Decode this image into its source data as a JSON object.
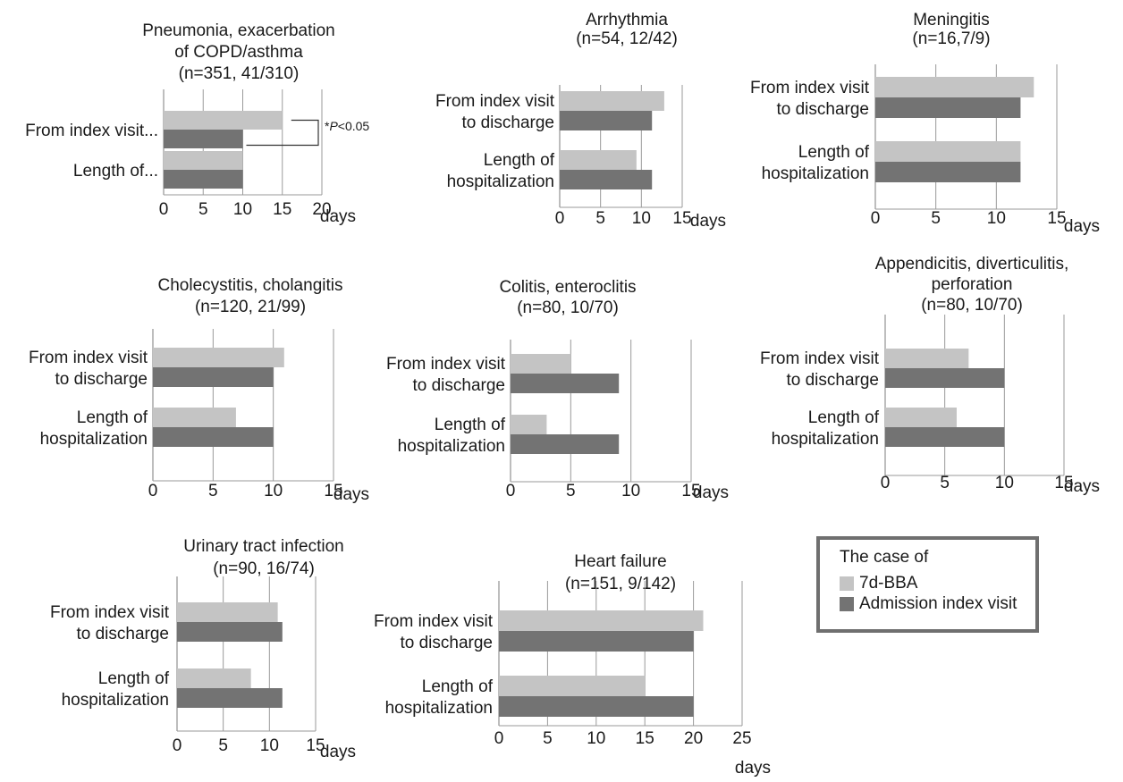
{
  "colors": {
    "light": "#c4c4c4",
    "dark": "#737373",
    "axis": "#9a9a9a",
    "text": "#1a1a1a"
  },
  "legend": {
    "title": "The case of",
    "items": [
      {
        "label": "7d-BBA",
        "color": "#c4c4c4"
      },
      {
        "label": "Admission index visit",
        "color": "#737373"
      }
    ]
  },
  "chart_data": [
    {
      "type": "bar",
      "orientation": "horizontal",
      "title_lines": [
        "Pneumonia, exacerbation",
        "of COPD/asthma",
        "(n=351, 41/310)"
      ],
      "categories": [
        "From index visit...",
        "Length of..."
      ],
      "series": [
        {
          "name": "7d-BBA",
          "values": [
            15,
            10
          ]
        },
        {
          "name": "Admission index visit",
          "values": [
            10,
            10
          ]
        }
      ],
      "xlim": [
        0,
        20
      ],
      "ticks": [
        0,
        5,
        10,
        15,
        20
      ],
      "unit": "days",
      "annotation": "*P<0.05",
      "grid": true
    },
    {
      "type": "bar",
      "orientation": "horizontal",
      "title_lines": [
        "Arrhythmia",
        "(n=54, 12/42)"
      ],
      "categories": [
        "From index visit to discharge",
        "Length of hospitalization"
      ],
      "series": [
        {
          "name": "7d-BBA",
          "values": [
            12.8,
            9.4
          ]
        },
        {
          "name": "Admission index visit",
          "values": [
            11.3,
            11.3
          ]
        }
      ],
      "xlim": [
        0,
        15
      ],
      "ticks": [
        0,
        5,
        10,
        15
      ],
      "unit": "days",
      "grid": true
    },
    {
      "type": "bar",
      "orientation": "horizontal",
      "title_lines": [
        "Meningitis",
        "(n=16,7/9)"
      ],
      "categories": [
        "From index visit to discharge",
        "Length of hospitalization"
      ],
      "series": [
        {
          "name": "7d-BBA",
          "values": [
            13.1,
            12.0
          ]
        },
        {
          "name": "Admission index visit",
          "values": [
            12.0,
            12.0
          ]
        }
      ],
      "xlim": [
        0,
        15
      ],
      "ticks": [
        0,
        5,
        10,
        15
      ],
      "unit": "days",
      "grid": true
    },
    {
      "type": "bar",
      "orientation": "horizontal",
      "title_lines": [
        "Cholecystitis, cholangitis",
        "(n=120, 21/99)"
      ],
      "categories": [
        "From index visit to discharge",
        "Length of hospitalization"
      ],
      "series": [
        {
          "name": "7d-BBA",
          "values": [
            10.9,
            6.9
          ]
        },
        {
          "name": "Admission index visit",
          "values": [
            10.0,
            10.0
          ]
        }
      ],
      "xlim": [
        0,
        15
      ],
      "ticks": [
        0,
        5,
        10,
        15
      ],
      "unit": "days",
      "grid": true
    },
    {
      "type": "bar",
      "orientation": "horizontal",
      "title_lines": [
        "Colitis, enteroclitis",
        "(n=80, 10/70)"
      ],
      "categories": [
        "From index visit to discharge",
        "Length of hospitalization"
      ],
      "series": [
        {
          "name": "7d-BBA",
          "values": [
            5.0,
            3.0
          ]
        },
        {
          "name": "Admission index visit",
          "values": [
            9.0,
            9.0
          ]
        }
      ],
      "xlim": [
        0,
        15
      ],
      "ticks": [
        0,
        5,
        10,
        15
      ],
      "unit": "days",
      "grid": true
    },
    {
      "type": "bar",
      "orientation": "horizontal",
      "title_lines": [
        "Appendicitis, diverticulitis,",
        "perforation",
        "(n=80, 10/70)"
      ],
      "categories": [
        "From index visit to discharge",
        "Length of hospitalization"
      ],
      "series": [
        {
          "name": "7d-BBA",
          "values": [
            7.0,
            6.0
          ]
        },
        {
          "name": "Admission index visit",
          "values": [
            10.0,
            10.0
          ]
        }
      ],
      "xlim": [
        0,
        15
      ],
      "ticks": [
        0,
        5,
        10,
        15
      ],
      "unit": "days",
      "grid": true
    },
    {
      "type": "bar",
      "orientation": "horizontal",
      "title_lines": [
        "Urinary tract infection",
        "(n=90, 16/74)"
      ],
      "categories": [
        "From index visit to discharge",
        "Length of hospitalization"
      ],
      "series": [
        {
          "name": "7d-BBA",
          "values": [
            10.9,
            8.0
          ]
        },
        {
          "name": "Admission index visit",
          "values": [
            11.4,
            11.4
          ]
        }
      ],
      "xlim": [
        0,
        15
      ],
      "ticks": [
        0,
        5,
        10,
        15
      ],
      "unit": "days",
      "grid": true
    },
    {
      "type": "bar",
      "orientation": "horizontal",
      "title_lines": [
        "Heart failure",
        "(n=151, 9/142)"
      ],
      "categories": [
        "From index visit to discharge",
        "Length of hospitalization"
      ],
      "series": [
        {
          "name": "7d-BBA",
          "values": [
            21.0,
            15.0
          ]
        },
        {
          "name": "Admission index visit",
          "values": [
            20.0,
            20.0
          ]
        }
      ],
      "xlim": [
        0,
        25
      ],
      "ticks": [
        0,
        5,
        10,
        15,
        20,
        25
      ],
      "unit": "days",
      "grid": true
    }
  ]
}
